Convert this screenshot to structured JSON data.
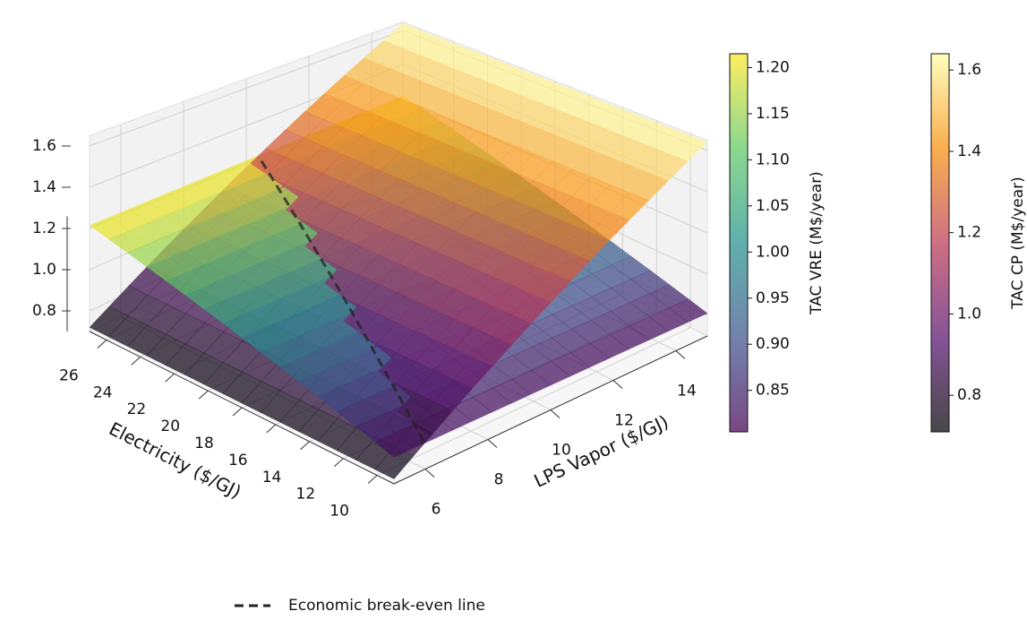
{
  "chart_data": {
    "type": "surface3d",
    "x_label": "Electricity ($/GJ)",
    "y_label": "LPS Vapor ($/GJ)",
    "x": [
      9,
      13.5,
      18,
      22.5,
      27
    ],
    "y": [
      5,
      7.5,
      10,
      12.5,
      15
    ],
    "xlim": [
      9,
      27
    ],
    "ylim": [
      5,
      15
    ],
    "zlim": [
      0.7,
      1.65
    ],
    "xticks": [
      10,
      12,
      14,
      16,
      18,
      20,
      22,
      24,
      26
    ],
    "yticks": [
      6,
      8,
      10,
      12,
      14
    ],
    "zticks": [
      0.8,
      {
        "value": 1,
        "label": "1.0"
      },
      1.2,
      1.4,
      1.6
    ],
    "grid": true,
    "series": [
      {
        "name": "TAC VRE (M$/year)",
        "colormap": "viridis",
        "clim": [
          0.805,
          1.215
        ],
        "cticks": [
          0.85,
          {
            "value": 0.9,
            "label": "0.90"
          },
          0.95,
          {
            "value": 1,
            "label": "1.00"
          },
          1.05,
          {
            "value": 1.1,
            "label": "1.10"
          },
          1.15,
          {
            "value": 1.2,
            "label": "1.20"
          }
        ],
        "z": [
          [
            0.81,
            0.911,
            1.013,
            1.114,
            1.215
          ],
          [
            0.81,
            0.911,
            1.013,
            1.114,
            1.215
          ],
          [
            0.81,
            0.911,
            1.013,
            1.114,
            1.215
          ],
          [
            0.81,
            0.911,
            1.013,
            1.114,
            1.215
          ],
          [
            0.81,
            0.911,
            1.013,
            1.114,
            1.215
          ]
        ]
      },
      {
        "name": "TAC CP (M$/year)",
        "colormap": "inferno",
        "clim": [
          0.71,
          1.64
        ],
        "cticks": [
          0.8,
          {
            "value": 1,
            "label": "1.0"
          },
          1.2,
          1.4,
          1.6
        ],
        "z": [
          [
            0.72,
            0.72,
            0.72,
            0.72,
            0.72
          ],
          [
            0.95,
            0.95,
            0.95,
            0.95,
            0.95
          ],
          [
            1.18,
            1.18,
            1.18,
            1.18,
            1.18
          ],
          [
            1.41,
            1.41,
            1.41,
            1.41,
            1.41
          ],
          [
            1.64,
            1.64,
            1.64,
            1.64,
            1.64
          ]
        ]
      }
    ],
    "break_even": {
      "label": "Economic break-even line"
    }
  }
}
